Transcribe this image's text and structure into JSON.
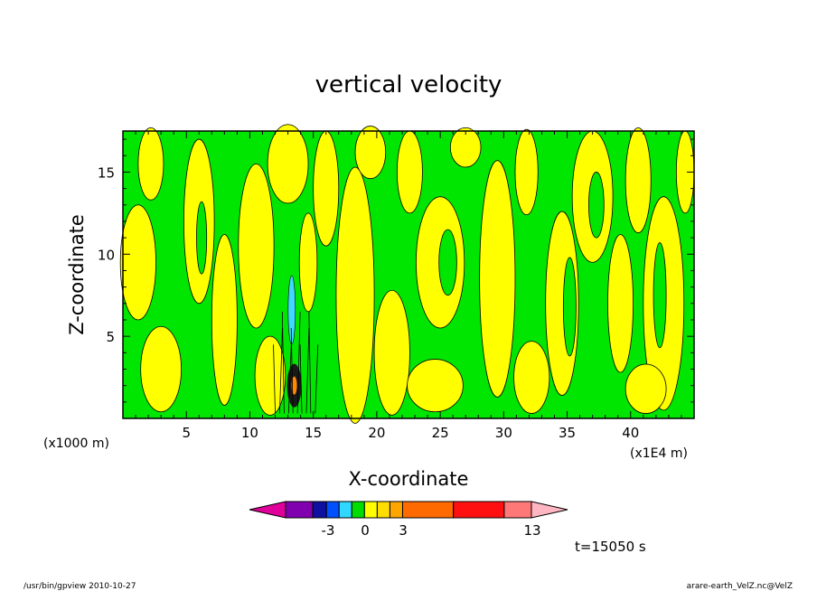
{
  "chart_data": {
    "type": "heatmap",
    "title": "vertical velocity",
    "xlabel": "X-coordinate",
    "ylabel": "Z-coordinate",
    "x_unit_left": "(x1000 m)",
    "x_unit_right": "(x1E4 m)",
    "xlim": [
      0,
      45
    ],
    "ylim": [
      0,
      17.5
    ],
    "x_ticks": [
      "5",
      "10",
      "15",
      "20",
      "25",
      "30",
      "35",
      "40"
    ],
    "y_ticks": [
      "5",
      "10",
      "15"
    ],
    "time_label": "t=15050 s",
    "colorbar": {
      "tick_labels": [
        "-3",
        "0",
        "3",
        "13"
      ],
      "colors": [
        "#e0009a",
        "#8000b0",
        "#1010a0",
        "#0050ff",
        "#30d8ff",
        "#00dd00",
        "#ffff00",
        "#ffdd00",
        "#ffa500",
        "#ff6a00",
        "#ff1010",
        "#ff7878",
        "#ffb6c1"
      ]
    },
    "colors": {
      "positive": "#ffff00",
      "negative": "#00e600",
      "strong_negative": "#40d8ff",
      "strong_positive": "#ff8800"
    }
  },
  "footer": {
    "left": "/usr/bin/gpview   2010-10-27",
    "right": "arare-earth_VelZ.nc@VelZ"
  }
}
